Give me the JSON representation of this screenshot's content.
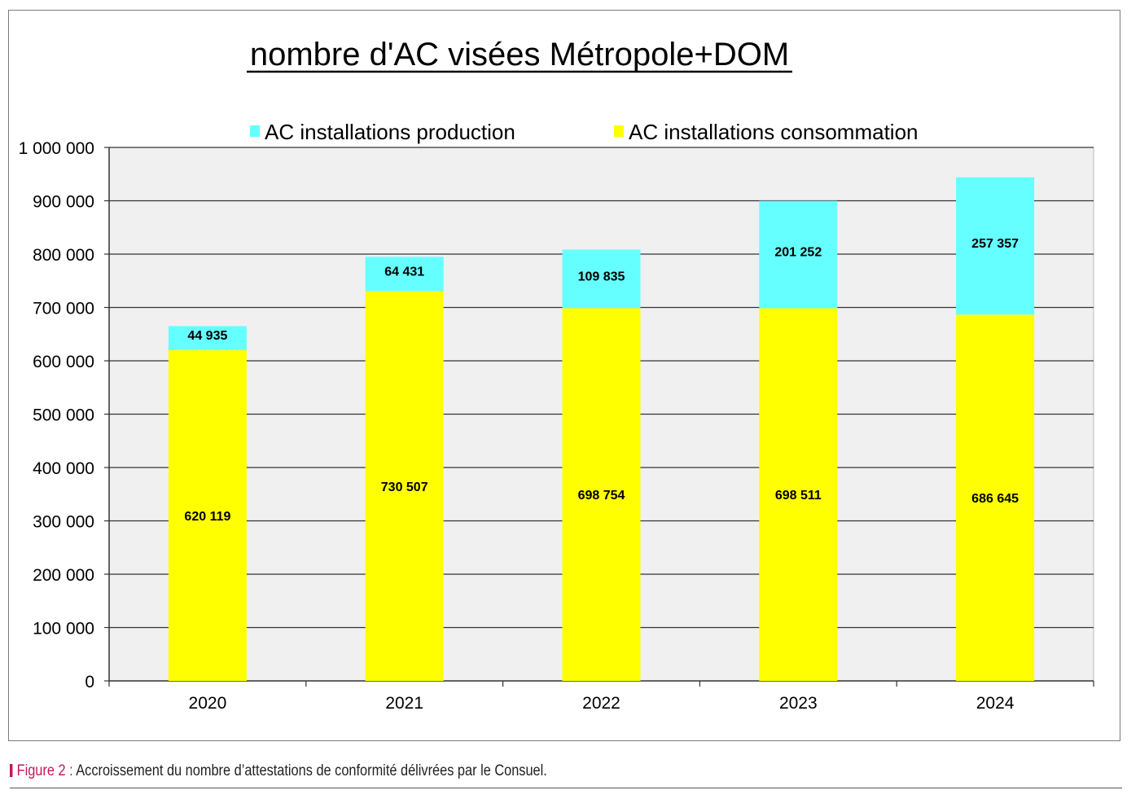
{
  "chart_data": {
    "type": "bar",
    "stacked": true,
    "title": "nombre d'AC visées Métropole+DOM",
    "categories": [
      "2020",
      "2021",
      "2022",
      "2023",
      "2024"
    ],
    "series": [
      {
        "name": "AC installations consommation",
        "color": "#ffff00",
        "values": [
          620119,
          730507,
          698754,
          698511,
          686645
        ],
        "labels": [
          "620 119",
          "730 507",
          "698 754",
          "698 511",
          "686 645"
        ]
      },
      {
        "name": "AC installations production",
        "color": "#66ffff",
        "values": [
          44935,
          64431,
          109835,
          201252,
          257357
        ],
        "labels": [
          "44 935",
          "64 431",
          "109 835",
          "201 252",
          "257 357"
        ]
      }
    ],
    "legend_order": [
      1,
      0
    ],
    "legend_position": "top",
    "ylim": [
      0,
      1000000
    ],
    "yticks": [
      0,
      100000,
      200000,
      300000,
      400000,
      500000,
      600000,
      700000,
      800000,
      900000,
      1000000
    ],
    "ytick_labels": [
      "0",
      "100 000",
      "200 000",
      "300 000",
      "400 000",
      "500 000",
      "600 000",
      "700 000",
      "800 000",
      "900 000",
      "1 000 000"
    ],
    "grid": true,
    "plot_background": "#f0f0f0"
  },
  "caption": {
    "figure_label": "Figure 2 :",
    "text": "Accroissement du nombre d’attestations de conformité délivrées par le Consuel."
  }
}
